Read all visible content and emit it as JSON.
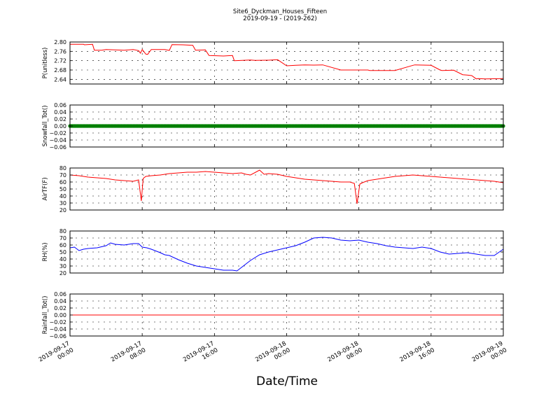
{
  "figure": {
    "title_line1": "Site6_Dyckman_Houses_Fifteen",
    "title_line2": "2019-09-19 - (2019-262)",
    "xlabel": "Date/Time"
  },
  "chart_data": [
    {
      "type": "line",
      "ylabel": "P(unitless)",
      "ylim": [
        2.62,
        2.8
      ],
      "yticks": [
        "2.80",
        "2.76",
        "2.72",
        "2.68",
        "2.64"
      ],
      "ytick_values": [
        2.8,
        2.76,
        2.72,
        2.68,
        2.64
      ],
      "grid": true,
      "xlim": [
        0,
        48
      ],
      "series": [
        {
          "color": "#ff0000",
          "x": [
            0,
            1.5,
            1.6,
            2.5,
            2.7,
            3.5,
            4.0,
            6.0,
            7.0,
            7.6,
            7.8,
            8.0,
            8.4,
            8.6,
            9.0,
            10.5,
            11.0,
            11.3,
            12.5,
            13.6,
            13.9,
            15.0,
            15.4,
            17.0,
            18.0,
            18.2,
            19.5,
            20.0,
            20.5,
            22.0,
            23.0,
            24.0,
            25.0,
            26.0,
            27.0,
            28.0,
            30.0,
            32.0,
            33.0,
            33.2,
            36.0,
            38.0,
            38.2,
            40.0,
            41.0,
            41.2,
            42.5,
            43.5,
            44.0,
            44.5,
            45.0,
            45.2,
            46.0,
            48.0
          ],
          "y": [
            2.79,
            2.79,
            2.788,
            2.79,
            2.765,
            2.765,
            2.768,
            2.765,
            2.768,
            2.763,
            2.752,
            2.768,
            2.748,
            2.747,
            2.768,
            2.768,
            2.764,
            2.789,
            2.788,
            2.786,
            2.765,
            2.766,
            2.742,
            2.74,
            2.742,
            2.72,
            2.722,
            2.723,
            2.721,
            2.722,
            2.724,
            2.698,
            2.7,
            2.702,
            2.701,
            2.702,
            2.68,
            2.68,
            2.68,
            2.678,
            2.678,
            2.7,
            2.702,
            2.7,
            2.68,
            2.678,
            2.679,
            2.66,
            2.658,
            2.656,
            2.642,
            2.643,
            2.642,
            2.643
          ]
        }
      ]
    },
    {
      "type": "scatter",
      "ylabel": "Snowfall_Tot()",
      "ylim": [
        -0.06,
        0.06
      ],
      "yticks": [
        "0.06",
        "0.04",
        "0.02",
        "0.00",
        "−0.02",
        "−0.04",
        "−0.06"
      ],
      "ytick_values": [
        0.06,
        0.04,
        0.02,
        0.0,
        -0.02,
        -0.04,
        -0.06
      ],
      "grid": true,
      "xlim": [
        0,
        48
      ],
      "series": [
        {
          "color": "#008000",
          "x_start": 0,
          "x_end": 48,
          "value": 0.0
        }
      ]
    },
    {
      "type": "line",
      "ylabel": "AirTF(F)",
      "ylim": [
        20,
        80
      ],
      "yticks": [
        "80",
        "70",
        "60",
        "50",
        "40",
        "30",
        "20"
      ],
      "ytick_values": [
        80,
        70,
        60,
        50,
        40,
        30,
        20
      ],
      "grid": true,
      "xlim": [
        0,
        48
      ],
      "series": [
        {
          "color": "#ff0000",
          "x": [
            0,
            1,
            2,
            3,
            4,
            5,
            6,
            7,
            7.6,
            7.9,
            8.1,
            8.4,
            9,
            10,
            11,
            12,
            13,
            14,
            15,
            16,
            17,
            18,
            19,
            19.5,
            20,
            21,
            21.5,
            22,
            23,
            24,
            25,
            26,
            27,
            28,
            29,
            30,
            31,
            31.5,
            31.8,
            32.1,
            32.4,
            33,
            34,
            35,
            36,
            37,
            38,
            39,
            40,
            41,
            42,
            43,
            44,
            45,
            46,
            47,
            48
          ],
          "y": [
            70,
            69,
            67,
            66,
            65,
            63,
            62,
            61,
            63,
            33,
            65,
            68,
            69,
            70,
            72,
            73,
            74,
            74,
            75,
            74,
            73,
            72,
            73,
            71,
            70,
            77,
            71,
            72,
            71,
            68,
            66,
            64,
            63,
            62,
            61,
            60,
            60,
            58,
            29,
            57,
            59,
            62,
            64,
            66,
            68,
            69,
            70,
            69,
            68,
            67,
            66,
            65,
            64,
            63,
            62,
            61,
            59
          ]
        }
      ]
    },
    {
      "type": "line",
      "ylabel": "RH(%)",
      "ylim": [
        20,
        80
      ],
      "yticks": [
        "80",
        "70",
        "60",
        "50",
        "40",
        "30",
        "20"
      ],
      "ytick_values": [
        80,
        70,
        60,
        50,
        40,
        30,
        20
      ],
      "grid": true,
      "xlim": [
        0,
        48
      ],
      "series": [
        {
          "color": "#0000ff",
          "x": [
            0,
            0.5,
            1,
            1.5,
            2,
            3,
            4,
            4.5,
            5,
            6,
            7,
            7.6,
            8,
            8.5,
            9,
            10,
            10.5,
            11,
            12,
            13,
            14,
            15,
            16,
            17,
            18,
            18.5,
            19,
            20,
            21,
            22,
            23,
            24,
            25,
            26,
            27,
            28,
            29,
            30,
            31,
            32,
            33,
            34,
            35,
            36,
            37,
            38,
            39,
            40,
            41,
            42,
            43,
            44,
            45,
            46,
            47,
            48
          ],
          "y": [
            56,
            57,
            52,
            54,
            55,
            56,
            59,
            63,
            61,
            60,
            62,
            62,
            57,
            56,
            54,
            49,
            46,
            45,
            39,
            34,
            30,
            28,
            26,
            24,
            24,
            23,
            28,
            38,
            46,
            50,
            53,
            56,
            59,
            64,
            70,
            71,
            70,
            67,
            66,
            67,
            64,
            62,
            59,
            57,
            56,
            55,
            57,
            55,
            50,
            47,
            48,
            49,
            47,
            45,
            45,
            54
          ]
        }
      ]
    },
    {
      "type": "line",
      "ylabel": "Rainfall_Tot()",
      "ylim": [
        -0.06,
        0.06
      ],
      "yticks": [
        "0.06",
        "0.04",
        "0.02",
        "0.00",
        "−0.02",
        "−0.04",
        "−0.06"
      ],
      "ytick_values": [
        0.06,
        0.04,
        0.02,
        0.0,
        -0.02,
        -0.04,
        -0.06
      ],
      "grid": true,
      "xlim": [
        0,
        48
      ],
      "series": [
        {
          "color": "#ff0000",
          "x": [
            0,
            48
          ],
          "y": [
            0.0,
            0.0
          ]
        }
      ]
    }
  ],
  "xticks": [
    {
      "x": 0,
      "line1": "2019-09-17",
      "line2": "00:00"
    },
    {
      "x": 8,
      "line1": "2019-09-17",
      "line2": "08:00"
    },
    {
      "x": 16,
      "line1": "2019-09-17",
      "line2": "16:00"
    },
    {
      "x": 24,
      "line1": "2019-09-18",
      "line2": "00:00"
    },
    {
      "x": 32,
      "line1": "2019-09-18",
      "line2": "08:00"
    },
    {
      "x": 40,
      "line1": "2019-09-18",
      "line2": "16:00"
    },
    {
      "x": 48,
      "line1": "2019-09-19",
      "line2": "00:00"
    }
  ]
}
